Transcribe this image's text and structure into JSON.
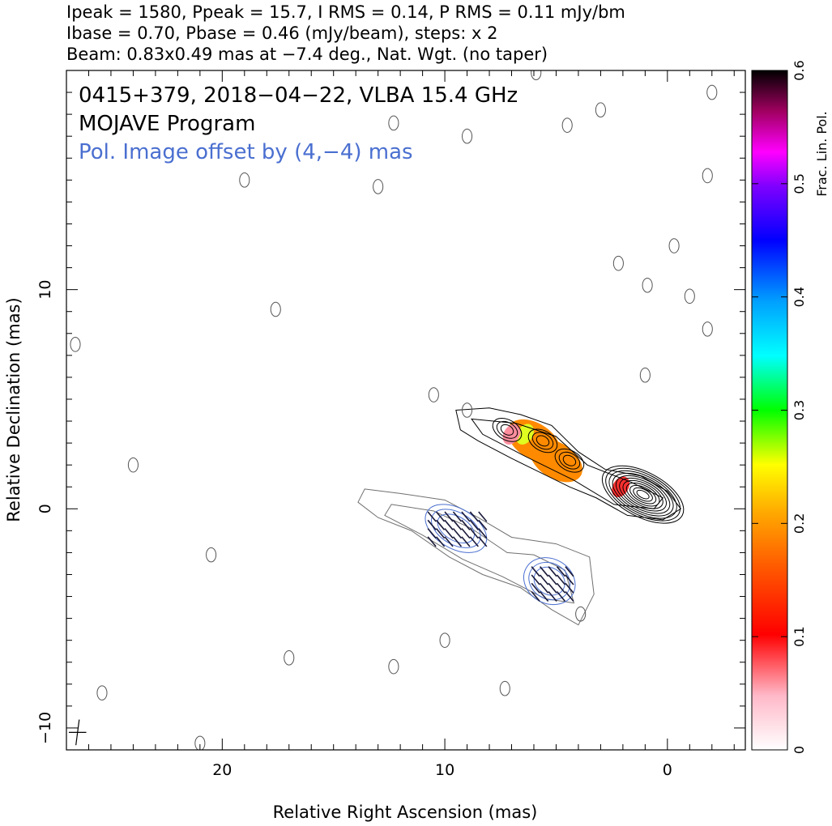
{
  "header": {
    "line1": "Ipeak = 1580, Ppeak = 15.7, I RMS = 0.14, P RMS = 0.11 mJy/bm",
    "line2": "Ibase = 0.70, Pbase = 0.46 (mJy/beam), steps: x 2",
    "line3": "Beam: 0.83x0.49 mas at −7.4 deg., Nat. Wgt. (no taper)"
  },
  "annotations": {
    "source": "0415+379, 2018−04−22, VLBA 15.4 GHz",
    "program": "MOJAVE Program",
    "offset_note": "Pol. Image offset by (4,−4) mas"
  },
  "colors": {
    "stokes_i_contour": "#000000",
    "pol_contour": "#4a6fd0",
    "pol_offset_text": "#4a6fd0",
    "offset_image_contour": "#707070"
  },
  "chart_data": {
    "type": "heatmap",
    "title": "",
    "xlabel": "Relative Right Ascension (mas)",
    "ylabel": "Relative Declination (mas)",
    "xlim": [
      27,
      -3.5
    ],
    "ylim": [
      -11,
      20
    ],
    "x_ticks": [
      20,
      10,
      0
    ],
    "x_tick_labels": [
      "20",
      "10",
      "0"
    ],
    "y_ticks": [
      10,
      0,
      -10
    ],
    "y_tick_labels": [
      "10",
      "0",
      "−10"
    ],
    "colorbar": {
      "label": "Frac. Lin. Pol.",
      "range": [
        0,
        0.6
      ],
      "ticks": [
        0,
        0.1,
        0.2,
        0.3,
        0.4,
        0.5,
        0.6
      ],
      "tick_labels": [
        "0",
        "0.1",
        "0.2",
        "0.3",
        "0.4",
        "0.5",
        "0.6"
      ]
    },
    "beam": {
      "major_mas": 0.83,
      "minor_mas": 0.49,
      "pa_deg": -7.4,
      "ra": 26.5,
      "dec": -10.2
    },
    "core": {
      "ra": 1.3,
      "dec": 0.7
    },
    "jet_knots": [
      {
        "ra": 5.6,
        "dec": 3.1
      },
      {
        "ra": 7.2,
        "dec": 3.6
      },
      {
        "ra": 4.4,
        "dec": 2.2
      }
    ],
    "frac_pol_patches": [
      {
        "ra": 6.0,
        "dec": 3.1,
        "value": 0.16
      },
      {
        "ra": 5.0,
        "dec": 2.2,
        "value": 0.14
      },
      {
        "ra": 6.4,
        "dec": 3.4,
        "value": 0.22
      },
      {
        "ra": 2.1,
        "dec": 1.0,
        "value": 0.05
      },
      {
        "ra": 7.0,
        "dec": 3.4,
        "value": 0.03
      }
    ],
    "pol_image_offset_mas": [
      4,
      -4
    ]
  }
}
